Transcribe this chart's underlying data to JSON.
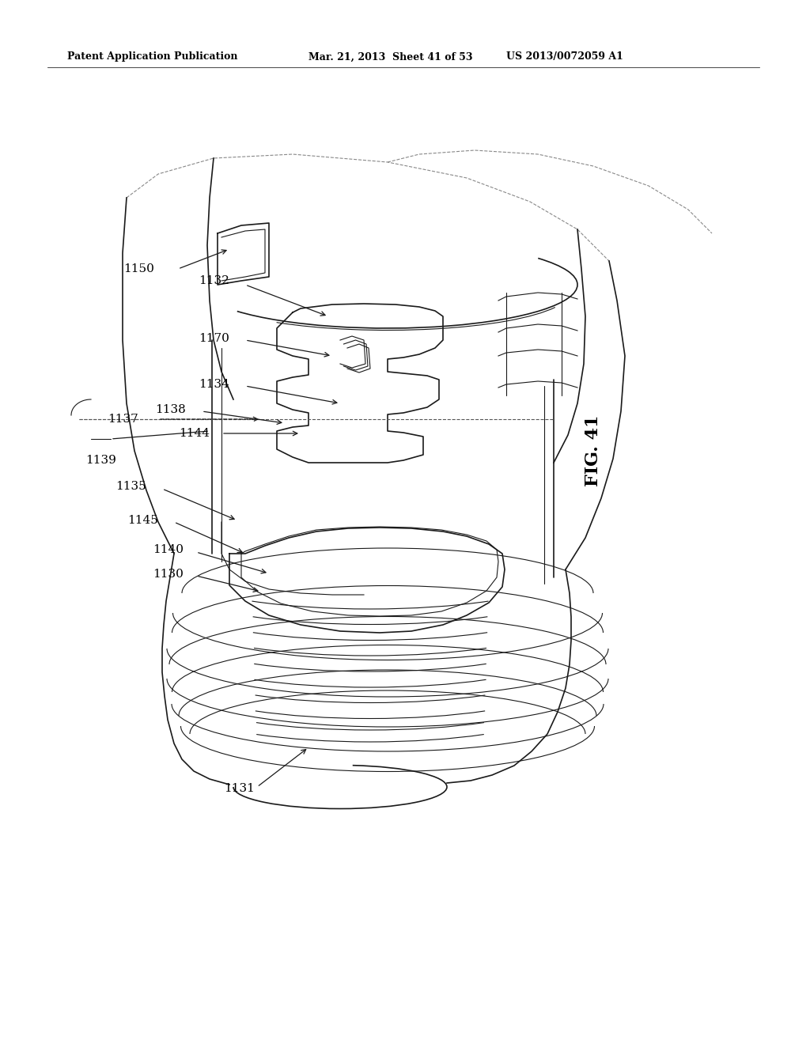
{
  "bg_color": "#ffffff",
  "header_left": "Patent Application Publication",
  "header_center": "Mar. 21, 2013  Sheet 41 of 53",
  "header_right": "US 2013/0072059 A1",
  "fig_label": "FIG. 41",
  "part_labels": [
    "1150",
    "1137",
    "1132",
    "1170",
    "1139",
    "1138",
    "1134",
    "1135",
    "1145",
    "1144",
    "1140",
    "1130",
    "1131"
  ],
  "line_color": "#1a1a1a",
  "label_color": "#000000"
}
